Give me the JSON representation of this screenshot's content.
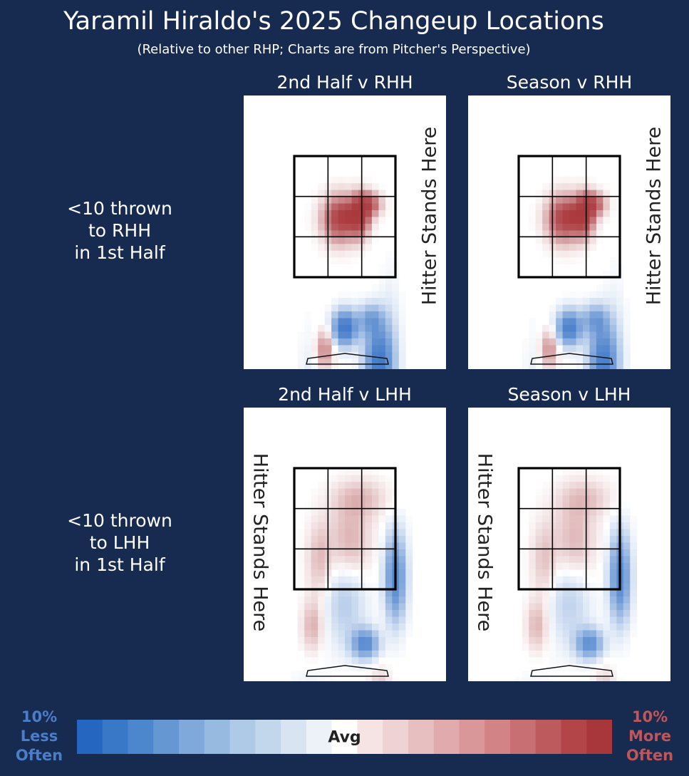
{
  "title": "Yaramil Hiraldo's 2025 Changeup Locations",
  "subtitle": "(Relative to other RHP; Charts are from Pitcher's Perspective)",
  "rows": [
    {
      "label_lines": [
        "<10 thrown",
        "to RHH",
        "in 1st Half"
      ]
    },
    {
      "label_lines": [
        "<10 thrown",
        "to LHH",
        "in 1st Half"
      ]
    }
  ],
  "panels": [
    {
      "title": "2nd Half v RHH",
      "hitter_text": "Hitter Stands Here",
      "hitter_side": "right"
    },
    {
      "title": "Season v RHH",
      "hitter_text": "Hitter Stands Here",
      "hitter_side": "right"
    },
    {
      "title": "2nd Half v LHH",
      "hitter_text": "Hitter Stands Here",
      "hitter_side": "left"
    },
    {
      "title": "Season v LHH",
      "hitter_text": "Hitter Stands Here",
      "hitter_side": "left"
    }
  ],
  "legend": {
    "left_lines": [
      "10%",
      "Less",
      "Often"
    ],
    "right_lines": [
      "10%",
      "More",
      "Often"
    ],
    "center_label": "Avg",
    "left_color": "#4a7ec9",
    "right_color": "#c0555a",
    "swatches": [
      "#2566c0",
      "#3977c7",
      "#4c86cd",
      "#6597d3",
      "#7ea9da",
      "#97bae0",
      "#aecae6",
      "#c3d7ec",
      "#d8e4f1",
      "#edf2f8",
      "#ffffff",
      "#f6e4e5",
      "#efd2d3",
      "#e8bfc0",
      "#e1abad",
      "#d9979a",
      "#d18386",
      "#c76f72",
      "#bd5a5e",
      "#b34549",
      "#a8373b"
    ]
  },
  "chart_data": {
    "type": "heatmap",
    "title": "Yaramil Hiraldo's 2025 Changeup Locations",
    "subtitle": "(Relative to other RHP; Charts are from Pitcher's Perspective)",
    "value_scale": {
      "min": -10,
      "max": 10,
      "unit": "%",
      "center_label": "Avg"
    },
    "colors": {
      "low": "#2566c0",
      "mid": "#ffffff",
      "high": "#a8373b"
    },
    "zone_grid": {
      "rows": 3,
      "cols": 3
    },
    "panels": [
      {
        "name": "2nd Half v RHH",
        "blobs": [
          {
            "x": 0.45,
            "y": 0.52,
            "rx": 0.16,
            "ry": 0.18,
            "v": 1.0
          },
          {
            "x": 0.65,
            "y": 0.5,
            "rx": 0.09,
            "ry": 0.16,
            "v": 1.0
          },
          {
            "x": 0.72,
            "y": 0.4,
            "rx": 0.12,
            "ry": 0.09,
            "v": 0.95
          },
          {
            "x": 0.55,
            "y": 0.5,
            "rx": 0.12,
            "ry": 0.08,
            "v": 0.7
          },
          {
            "x": 0.5,
            "y": 1.42,
            "rx": 0.12,
            "ry": 0.14,
            "v": -0.95
          },
          {
            "x": 0.75,
            "y": 1.35,
            "rx": 0.12,
            "ry": 0.12,
            "v": -0.45
          },
          {
            "x": 0.83,
            "y": 1.7,
            "rx": 0.13,
            "ry": 0.3,
            "v": -0.9
          },
          {
            "x": 0.3,
            "y": 1.6,
            "rx": 0.08,
            "ry": 0.15,
            "v": 0.5
          },
          {
            "x": 0.7,
            "y": 2.05,
            "rx": 0.17,
            "ry": 0.1,
            "v": -0.4
          },
          {
            "x": 0.5,
            "y": 2.4,
            "rx": 0.35,
            "ry": 0.22,
            "v": 0.22
          },
          {
            "x": 0.15,
            "y": 2.2,
            "rx": 0.1,
            "ry": 0.6,
            "v": -0.15
          },
          {
            "x": 0.95,
            "y": 1.7,
            "rx": 0.1,
            "ry": 0.6,
            "v": -0.15
          }
        ]
      },
      {
        "name": "Season v RHH",
        "blobs": [
          {
            "x": 0.45,
            "y": 0.52,
            "rx": 0.16,
            "ry": 0.18,
            "v": 1.0
          },
          {
            "x": 0.65,
            "y": 0.5,
            "rx": 0.09,
            "ry": 0.16,
            "v": 1.0
          },
          {
            "x": 0.72,
            "y": 0.4,
            "rx": 0.12,
            "ry": 0.09,
            "v": 0.95
          },
          {
            "x": 0.55,
            "y": 0.5,
            "rx": 0.12,
            "ry": 0.08,
            "v": 0.7
          },
          {
            "x": 0.5,
            "y": 1.42,
            "rx": 0.12,
            "ry": 0.14,
            "v": -0.85
          },
          {
            "x": 0.75,
            "y": 1.35,
            "rx": 0.12,
            "ry": 0.12,
            "v": -0.45
          },
          {
            "x": 0.83,
            "y": 1.7,
            "rx": 0.13,
            "ry": 0.3,
            "v": -0.85
          },
          {
            "x": 0.3,
            "y": 1.6,
            "rx": 0.08,
            "ry": 0.15,
            "v": 0.45
          },
          {
            "x": 0.7,
            "y": 2.05,
            "rx": 0.17,
            "ry": 0.1,
            "v": -0.35
          },
          {
            "x": 0.5,
            "y": 2.4,
            "rx": 0.35,
            "ry": 0.22,
            "v": 0.2
          },
          {
            "x": 0.15,
            "y": 2.2,
            "rx": 0.1,
            "ry": 0.6,
            "v": -0.12
          },
          {
            "x": 0.95,
            "y": 1.7,
            "rx": 0.1,
            "ry": 0.6,
            "v": -0.12
          }
        ]
      },
      {
        "name": "2nd Half v LHH",
        "blobs": [
          {
            "x": 0.7,
            "y": 1.45,
            "rx": 0.13,
            "ry": 0.12,
            "v": -0.7
          },
          {
            "x": 0.5,
            "y": 1.1,
            "rx": 0.2,
            "ry": 0.35,
            "v": -0.25
          },
          {
            "x": 0.55,
            "y": 0.6,
            "rx": 0.2,
            "ry": 0.3,
            "v": 0.3
          },
          {
            "x": 0.25,
            "y": 0.75,
            "rx": 0.12,
            "ry": 0.3,
            "v": 0.25
          },
          {
            "x": 0.18,
            "y": 1.3,
            "rx": 0.1,
            "ry": 0.2,
            "v": 0.3
          },
          {
            "x": 0.65,
            "y": 0.25,
            "rx": 0.25,
            "ry": 0.15,
            "v": 0.25
          },
          {
            "x": 1.0,
            "y": 0.9,
            "rx": 0.1,
            "ry": 0.35,
            "v": -0.75
          },
          {
            "x": 0.85,
            "y": 1.9,
            "rx": 0.1,
            "ry": 0.2,
            "v": 0.3
          },
          {
            "x": 0.55,
            "y": 2.1,
            "rx": 0.22,
            "ry": 0.2,
            "v": 0.3
          },
          {
            "x": 0.15,
            "y": 2.2,
            "rx": 0.2,
            "ry": 0.4,
            "v": -0.15
          },
          {
            "x": 0.85,
            "y": 2.4,
            "rx": 0.15,
            "ry": 0.2,
            "v": 0.2
          }
        ]
      },
      {
        "name": "Season v LHH",
        "blobs": [
          {
            "x": 0.7,
            "y": 1.45,
            "rx": 0.13,
            "ry": 0.12,
            "v": -0.65
          },
          {
            "x": 0.5,
            "y": 1.1,
            "rx": 0.2,
            "ry": 0.35,
            "v": -0.22
          },
          {
            "x": 0.55,
            "y": 0.6,
            "rx": 0.2,
            "ry": 0.3,
            "v": 0.28
          },
          {
            "x": 0.25,
            "y": 0.75,
            "rx": 0.12,
            "ry": 0.3,
            "v": 0.22
          },
          {
            "x": 0.18,
            "y": 1.3,
            "rx": 0.1,
            "ry": 0.2,
            "v": 0.28
          },
          {
            "x": 0.65,
            "y": 0.25,
            "rx": 0.25,
            "ry": 0.15,
            "v": 0.22
          },
          {
            "x": 1.0,
            "y": 0.9,
            "rx": 0.1,
            "ry": 0.35,
            "v": -0.75
          },
          {
            "x": 0.85,
            "y": 1.9,
            "rx": 0.1,
            "ry": 0.2,
            "v": 0.28
          },
          {
            "x": 0.55,
            "y": 2.1,
            "rx": 0.22,
            "ry": 0.2,
            "v": 0.28
          },
          {
            "x": 0.15,
            "y": 2.2,
            "rx": 0.2,
            "ry": 0.4,
            "v": -0.12
          },
          {
            "x": 0.85,
            "y": 2.4,
            "rx": 0.15,
            "ry": 0.2,
            "v": 0.18
          }
        ]
      }
    ]
  }
}
